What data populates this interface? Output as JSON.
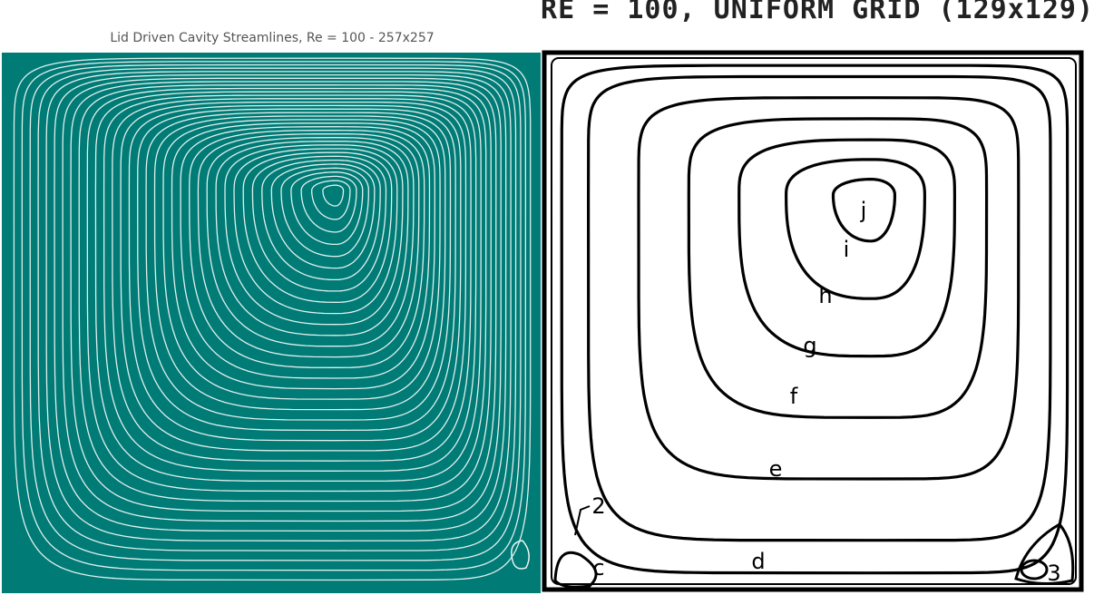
{
  "left_panel": {
    "title": "Lid Driven Cavity Streamlines, Re = 100 - 257x257"
  },
  "right_panel": {
    "title": "RE = 100, UNIFORM GRID (129x129)",
    "contour_labels": [
      "j",
      "i",
      "h",
      "g",
      "f",
      "e",
      "d",
      "c",
      "2",
      "3"
    ]
  }
}
